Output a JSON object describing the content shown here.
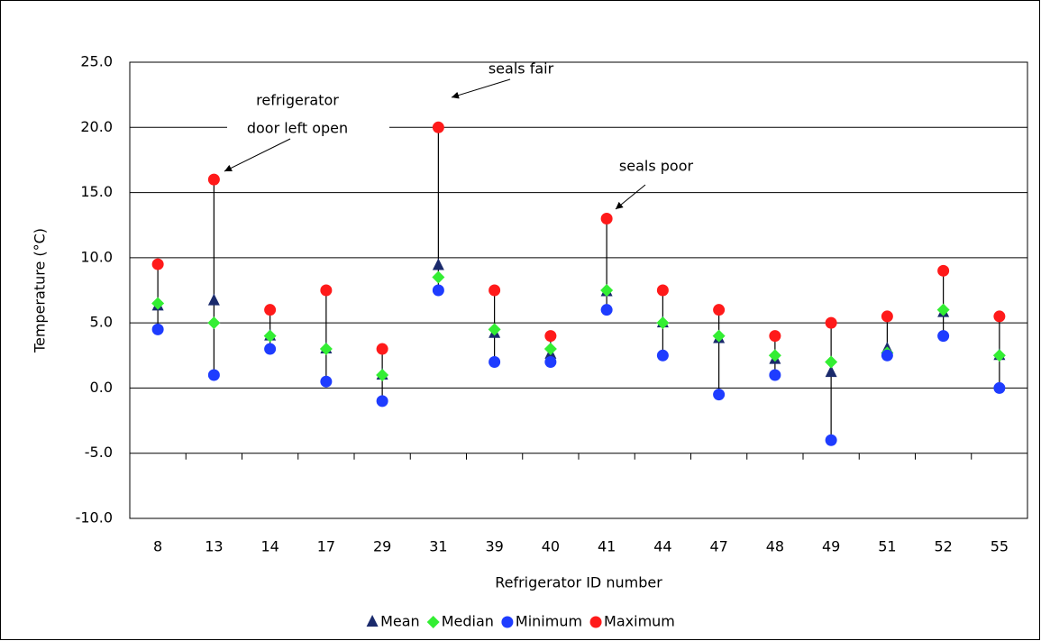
{
  "chart_data": {
    "type": "scatter",
    "x_label": "Refrigerator ID number",
    "y_label": "Temperature (°C)",
    "categories": [
      "8",
      "13",
      "14",
      "17",
      "29",
      "31",
      "39",
      "40",
      "41",
      "44",
      "47",
      "48",
      "49",
      "51",
      "52",
      "55"
    ],
    "series": [
      {
        "name": "Mean",
        "color": "#1a2a6c",
        "marker": "triangle",
        "values": [
          6.3,
          6.7,
          4,
          3,
          1,
          9.4,
          4.2,
          2.6,
          7.4,
          5,
          3.8,
          2.2,
          1.2,
          3,
          5.8,
          2.5
        ]
      },
      {
        "name": "Median",
        "color": "#33ee33",
        "marker": "diamond",
        "values": [
          6.5,
          5,
          4,
          3,
          1,
          8.5,
          4.5,
          3,
          7.5,
          5,
          4,
          2.5,
          2,
          2.7,
          6,
          2.5
        ]
      },
      {
        "name": "Minimum",
        "color": "#1e3cff",
        "marker": "circle",
        "values": [
          4.5,
          1,
          3,
          0.5,
          -1,
          7.5,
          2,
          2,
          6,
          2.5,
          -0.5,
          1,
          -4,
          2.5,
          4,
          0
        ]
      },
      {
        "name": "Maximum",
        "color": "#ff1a1a",
        "marker": "circle",
        "values": [
          9.5,
          16,
          6,
          7.5,
          3,
          20,
          7.5,
          4,
          13,
          7.5,
          6,
          4,
          5,
          5.5,
          9,
          5.5
        ]
      }
    ],
    "ylim": [
      -10,
      25
    ],
    "yticks": [
      {
        "value": -10,
        "label": "-10.0"
      },
      {
        "value": -5,
        "label": "-5.0"
      },
      {
        "value": 0,
        "label": "0.0"
      },
      {
        "value": 5,
        "label": "5.0"
      },
      {
        "value": 10,
        "label": "10.0"
      },
      {
        "value": 15,
        "label": "15.0"
      },
      {
        "value": 20,
        "label": "20.0"
      },
      {
        "value": 25,
        "label": "25.0"
      }
    ],
    "grid": true,
    "category_axis_at": -5,
    "legend": "bottom",
    "annotations": [
      {
        "text": [
          "refrigerator",
          "door left open"
        ]
      },
      {
        "text": "seals fair"
      },
      {
        "text": "seals poor"
      }
    ]
  }
}
